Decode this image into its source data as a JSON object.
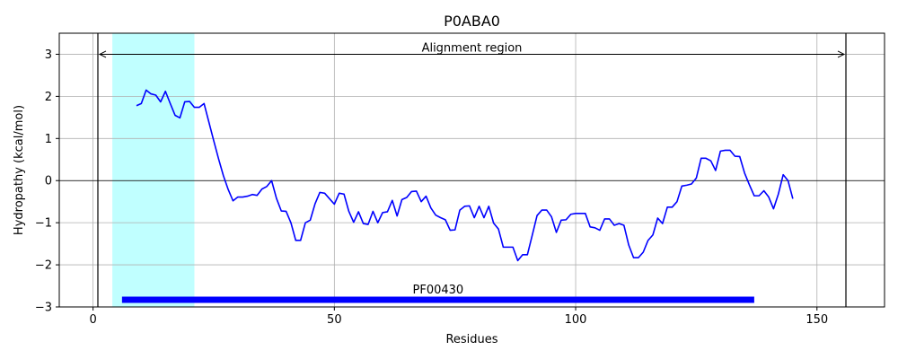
{
  "chart_data": {
    "type": "line",
    "title": "P0ABA0",
    "xlabel": "Residues",
    "ylabel": "Hydropathy (kcal/mol)",
    "xlim": [
      -7,
      164
    ],
    "ylim": [
      -3,
      3.5
    ],
    "xticks": [
      0,
      50,
      100,
      150
    ],
    "yticks": [
      -3,
      -2,
      -1,
      0,
      1,
      2,
      3
    ],
    "grid": true,
    "line_color": "#0000ff",
    "series": [
      {
        "x": [
          9,
          10,
          11,
          12,
          13,
          14,
          15,
          16,
          17,
          18,
          19,
          20,
          21,
          22,
          23,
          24,
          25,
          26,
          27,
          28,
          29,
          30,
          31,
          32,
          33,
          34,
          35,
          36,
          37,
          38,
          39,
          40,
          41,
          42,
          43,
          44,
          45,
          46,
          47,
          48,
          49,
          50,
          51,
          52,
          53,
          54,
          55,
          56,
          57,
          58,
          59,
          60,
          61,
          62,
          63,
          64,
          65,
          66,
          67,
          68,
          69,
          70,
          71,
          72,
          73,
          74,
          75,
          76,
          77,
          78,
          79,
          80,
          81,
          82,
          83,
          84,
          85,
          86,
          87,
          88,
          89,
          90,
          91,
          92,
          93,
          94,
          95,
          96,
          97,
          98,
          99,
          100,
          101,
          102,
          103,
          104,
          105,
          106,
          107,
          108,
          109,
          110,
          111,
          112,
          113,
          114,
          115,
          116,
          117,
          118,
          119,
          120,
          121,
          122,
          123,
          124,
          125,
          126,
          127,
          128,
          129,
          130,
          131,
          132,
          133,
          134,
          135,
          136,
          137,
          138,
          139,
          140,
          141,
          142,
          143,
          144,
          145
        ],
        "y": [
          1.78,
          1.83,
          2.15,
          2.06,
          2.03,
          1.87,
          2.12,
          1.83,
          1.55,
          1.49,
          1.87,
          1.88,
          1.74,
          1.74,
          1.83,
          1.39,
          0.95,
          0.52,
          0.12,
          -0.21,
          -0.48,
          -0.39,
          -0.39,
          -0.37,
          -0.33,
          -0.35,
          -0.2,
          -0.14,
          0.0,
          -0.42,
          -0.72,
          -0.73,
          -1.0,
          -1.42,
          -1.42,
          -1.0,
          -0.94,
          -0.55,
          -0.28,
          -0.3,
          -0.43,
          -0.56,
          -0.3,
          -0.32,
          -0.73,
          -0.99,
          -0.74,
          -1.02,
          -1.04,
          -0.73,
          -1.0,
          -0.76,
          -0.74,
          -0.47,
          -0.84,
          -0.45,
          -0.4,
          -0.26,
          -0.25,
          -0.5,
          -0.37,
          -0.65,
          -0.82,
          -0.88,
          -0.93,
          -1.18,
          -1.17,
          -0.7,
          -0.61,
          -0.6,
          -0.88,
          -0.61,
          -0.88,
          -0.61,
          -1.01,
          -1.15,
          -1.58,
          -1.58,
          -1.58,
          -1.9,
          -1.76,
          -1.76,
          -1.3,
          -0.83,
          -0.7,
          -0.7,
          -0.86,
          -1.23,
          -0.94,
          -0.93,
          -0.8,
          -0.78,
          -0.78,
          -0.78,
          -1.1,
          -1.12,
          -1.18,
          -0.91,
          -0.91,
          -1.06,
          -1.02,
          -1.06,
          -1.53,
          -1.83,
          -1.83,
          -1.7,
          -1.42,
          -1.29,
          -0.89,
          -1.02,
          -0.63,
          -0.63,
          -0.5,
          -0.13,
          -0.11,
          -0.08,
          0.06,
          0.53,
          0.53,
          0.47,
          0.24,
          0.7,
          0.72,
          0.72,
          0.58,
          0.57,
          0.18,
          -0.1,
          -0.36,
          -0.36,
          -0.24,
          -0.39,
          -0.67,
          -0.32,
          0.14,
          0.0,
          -0.43
        ]
      }
    ],
    "vlines": [
      1,
      156
    ],
    "arrow": {
      "from": 1,
      "to": 156,
      "y": 3,
      "label": "Alignment region"
    },
    "shaded_region": {
      "from": 4,
      "to": 21,
      "color": "#c0ffff"
    },
    "domain_bar": {
      "from": 6,
      "to": 137,
      "y": -2.83,
      "label": "PF00430",
      "color": "#0000ff"
    }
  }
}
